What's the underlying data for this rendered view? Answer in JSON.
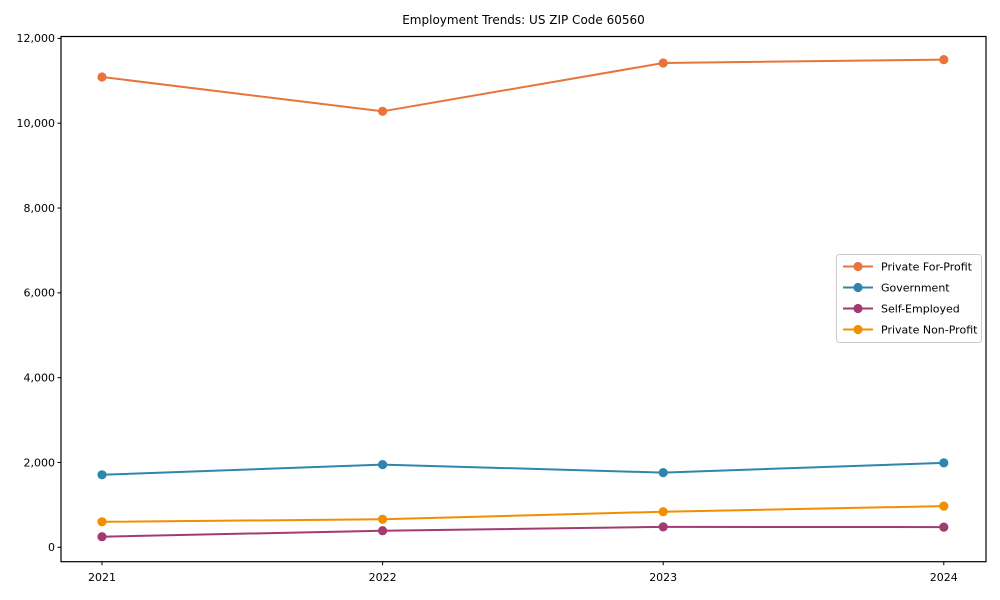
{
  "chart_data": {
    "type": "line",
    "title": "Employment Trends: US ZIP Code 60560",
    "categories": [
      "2021",
      "2022",
      "2023",
      "2024"
    ],
    "series": [
      {
        "name": "Private For-Profit",
        "color": "#E8743B",
        "values": [
          11090,
          10280,
          11420,
          11500
        ]
      },
      {
        "name": "Government",
        "color": "#2E86AB",
        "values": [
          1710,
          1950,
          1760,
          1990
        ]
      },
      {
        "name": "Self-Employed",
        "color": "#A23B72",
        "values": [
          250,
          390,
          480,
          475
        ]
      },
      {
        "name": "Private Non-Profit",
        "color": "#F18F01",
        "values": [
          600,
          660,
          840,
          970
        ]
      }
    ],
    "yticks": [
      0,
      2000,
      4000,
      6000,
      8000,
      10000,
      12000
    ],
    "ytick_labels": [
      "0",
      "2,000",
      "4,000",
      "6,000",
      "8,000",
      "10,000",
      "12,000"
    ],
    "ylim": [
      -340,
      12045
    ],
    "xlabel": "",
    "ylabel": "",
    "grid": false,
    "legend_position": "center right",
    "axis_color": "#000000",
    "legend_border_color": "#cccccc"
  }
}
